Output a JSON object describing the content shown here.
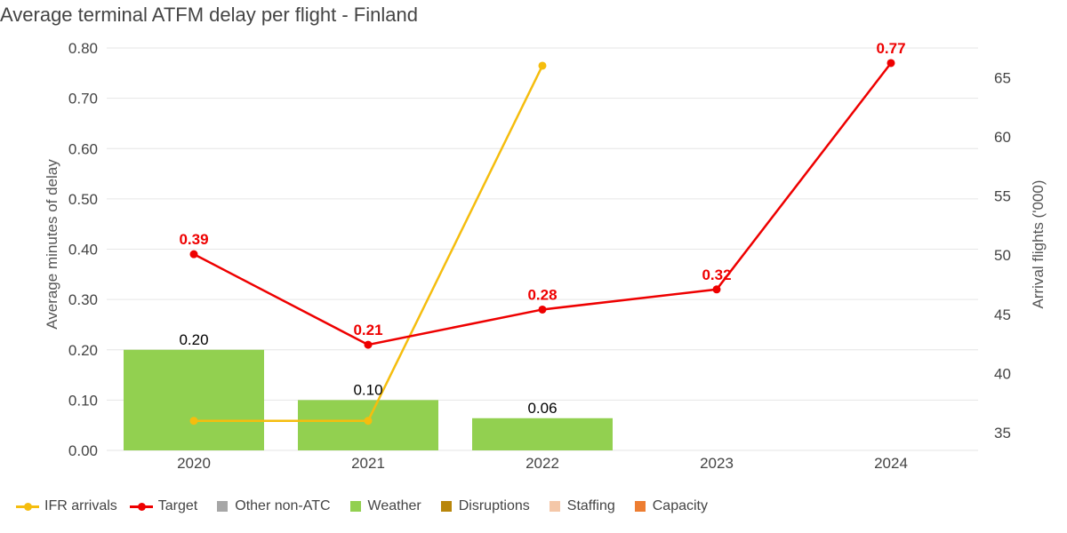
{
  "chart_data": {
    "type": "bar",
    "title": "Average terminal ATFM delay per flight - Finland",
    "categories": [
      "2020",
      "2021",
      "2022",
      "2023",
      "2024"
    ],
    "y_left": {
      "label": "Average minutes of delay",
      "range": [
        0,
        0.8
      ],
      "ticks": [
        "0.00",
        "0.10",
        "0.20",
        "0.30",
        "0.40",
        "0.50",
        "0.60",
        "0.70",
        "0.80"
      ]
    },
    "y_right": {
      "label": "Arrival flights ('000)",
      "range": [
        33.5,
        67.5
      ],
      "ticks": [
        "35",
        "40",
        "45",
        "50",
        "55",
        "60",
        "65"
      ]
    },
    "bars": {
      "name": "Weather",
      "values": [
        0.2,
        0.1,
        0.064,
        null,
        null
      ],
      "labels": [
        "0.20",
        "0.10",
        "0.06",
        "",
        ""
      ]
    },
    "target": {
      "name": "Target",
      "values": [
        0.39,
        0.21,
        0.28,
        0.32,
        0.77
      ],
      "labels": [
        "0.39",
        "0.21",
        "0.28",
        "0.32",
        "0.77"
      ]
    },
    "ifr_arrivals": {
      "name": "IFR arrivals",
      "values": [
        36,
        36,
        66,
        null,
        null
      ]
    },
    "legend": [
      {
        "name": "IFR arrivals",
        "kind": "line",
        "color": "#f5bd0e"
      },
      {
        "name": "Target",
        "kind": "line",
        "color": "#ee0000"
      },
      {
        "name": "Other non-ATC",
        "kind": "box",
        "color": "#a6a6a6"
      },
      {
        "name": "Weather",
        "kind": "box",
        "color": "#92d050"
      },
      {
        "name": "Disruptions",
        "kind": "box",
        "color": "#b8860b"
      },
      {
        "name": "Staffing",
        "kind": "box",
        "color": "#f4c7a8"
      },
      {
        "name": "Capacity",
        "kind": "box",
        "color": "#ed7d31"
      }
    ],
    "legend_position": "bottom-left",
    "grid": true
  },
  "colors": {
    "weather": "#92d050",
    "target": "#ee0000",
    "ifr": "#f5bd0e",
    "grid": "#e6e6e6"
  }
}
